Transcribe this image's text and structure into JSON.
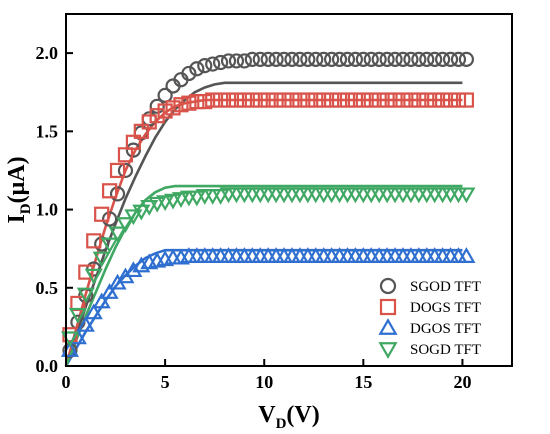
{
  "chart_data": {
    "type": "scatter",
    "title": "",
    "xlabel": {
      "main": "V",
      "sub": "D",
      "unit": "(V)"
    },
    "ylabel": {
      "main": "I",
      "sub": "D",
      "unit": "(μA)"
    },
    "xlim": [
      0,
      22.5
    ],
    "ylim": [
      0,
      2.25
    ],
    "xticks": [
      0,
      5,
      10,
      15,
      20
    ],
    "xtick_labels": [
      "0",
      "5",
      "10",
      "15",
      "20"
    ],
    "yticks": [
      0,
      0.5,
      1.0,
      1.5,
      2.0
    ],
    "ytick_labels": [
      "0.0",
      "0.5",
      "1.0",
      "1.5",
      "2.0"
    ],
    "grid": false,
    "legend_position": "bottom-right",
    "marker_x": [
      0.2,
      0.6,
      1.0,
      1.4,
      1.8,
      2.2,
      2.6,
      3.0,
      3.4,
      3.8,
      4.2,
      4.6,
      5.0,
      5.4,
      5.8,
      6.2,
      6.6,
      7.0,
      7.4,
      7.8,
      8.2,
      8.6,
      9.0,
      9.4,
      9.8,
      10.2,
      10.6,
      11.0,
      11.4,
      11.8,
      12.2,
      12.6,
      13.0,
      13.4,
      13.8,
      14.2,
      14.6,
      15.0,
      15.4,
      15.8,
      16.2,
      16.6,
      17.0,
      17.4,
      17.8,
      18.2,
      18.6,
      19.0,
      19.4,
      19.8,
      20.2
    ],
    "fit_x": [
      0,
      0.5,
      1,
      1.5,
      2,
      2.5,
      3,
      3.5,
      4,
      4.5,
      5,
      5.5,
      6,
      6.5,
      7,
      7.5,
      8,
      8.5,
      9,
      9.5,
      10,
      11,
      12,
      13,
      14,
      15,
      16,
      17,
      18,
      19,
      20
    ],
    "series": [
      {
        "name": "SGOD TFT",
        "marker": "circle",
        "color": "#555555",
        "values": [
          0.1,
          0.28,
          0.45,
          0.62,
          0.78,
          0.94,
          1.1,
          1.25,
          1.38,
          1.49,
          1.58,
          1.66,
          1.73,
          1.79,
          1.83,
          1.87,
          1.9,
          1.92,
          1.93,
          1.94,
          1.95,
          1.95,
          1.95,
          1.96,
          1.96,
          1.96,
          1.96,
          1.96,
          1.96,
          1.96,
          1.96,
          1.96,
          1.96,
          1.96,
          1.96,
          1.96,
          1.96,
          1.96,
          1.96,
          1.96,
          1.96,
          1.96,
          1.96,
          1.96,
          1.96,
          1.96,
          1.96,
          1.96,
          1.96,
          1.96,
          1.96
        ],
        "fit": [
          0,
          0.19,
          0.38,
          0.56,
          0.74,
          0.91,
          1.07,
          1.21,
          1.34,
          1.46,
          1.56,
          1.64,
          1.7,
          1.75,
          1.78,
          1.8,
          1.81,
          1.81,
          1.81,
          1.81,
          1.81,
          1.81,
          1.81,
          1.81,
          1.81,
          1.81,
          1.81,
          1.81,
          1.81,
          1.81,
          1.81
        ]
      },
      {
        "name": "DOGS TFT",
        "marker": "square",
        "color": "#d9534a",
        "values": [
          0.2,
          0.4,
          0.6,
          0.8,
          0.97,
          1.12,
          1.25,
          1.35,
          1.43,
          1.5,
          1.56,
          1.6,
          1.63,
          1.65,
          1.67,
          1.68,
          1.69,
          1.69,
          1.7,
          1.7,
          1.7,
          1.7,
          1.7,
          1.7,
          1.7,
          1.7,
          1.7,
          1.7,
          1.7,
          1.7,
          1.7,
          1.7,
          1.7,
          1.7,
          1.7,
          1.7,
          1.7,
          1.7,
          1.7,
          1.7,
          1.7,
          1.7,
          1.7,
          1.7,
          1.7,
          1.7,
          1.7,
          1.7,
          1.7,
          1.7,
          1.7
        ],
        "fit": [
          0,
          0.23,
          0.46,
          0.68,
          0.89,
          1.08,
          1.25,
          1.38,
          1.48,
          1.56,
          1.62,
          1.66,
          1.68,
          1.69,
          1.7,
          1.7,
          1.7,
          1.7,
          1.7,
          1.7,
          1.7,
          1.7,
          1.7,
          1.7,
          1.7,
          1.7,
          1.7,
          1.7,
          1.7,
          1.7,
          1.7
        ]
      },
      {
        "name": "DGOS TFT",
        "marker": "triangle-up",
        "color": "#2f6fd0",
        "values": [
          0.1,
          0.18,
          0.26,
          0.34,
          0.41,
          0.47,
          0.53,
          0.57,
          0.61,
          0.64,
          0.66,
          0.67,
          0.68,
          0.69,
          0.69,
          0.7,
          0.7,
          0.7,
          0.7,
          0.7,
          0.7,
          0.7,
          0.7,
          0.7,
          0.7,
          0.7,
          0.7,
          0.7,
          0.7,
          0.7,
          0.7,
          0.7,
          0.7,
          0.7,
          0.7,
          0.7,
          0.7,
          0.7,
          0.7,
          0.7,
          0.7,
          0.7,
          0.7,
          0.7,
          0.7,
          0.7,
          0.7,
          0.7,
          0.7,
          0.7,
          0.7
        ],
        "fit": [
          0,
          0.11,
          0.22,
          0.32,
          0.42,
          0.51,
          0.58,
          0.64,
          0.69,
          0.72,
          0.74,
          0.74,
          0.74,
          0.74,
          0.74,
          0.74,
          0.74,
          0.74,
          0.74,
          0.74,
          0.74,
          0.74,
          0.74,
          0.74,
          0.74,
          0.74,
          0.74,
          0.74,
          0.74,
          0.74,
          0.74
        ]
      },
      {
        "name": "SOGD TFT",
        "marker": "triangle-down",
        "color": "#3fa862",
        "values": [
          0.18,
          0.33,
          0.46,
          0.58,
          0.69,
          0.78,
          0.85,
          0.91,
          0.96,
          0.99,
          1.02,
          1.04,
          1.05,
          1.06,
          1.07,
          1.08,
          1.08,
          1.09,
          1.09,
          1.09,
          1.1,
          1.1,
          1.1,
          1.1,
          1.1,
          1.1,
          1.1,
          1.1,
          1.1,
          1.1,
          1.1,
          1.1,
          1.1,
          1.1,
          1.1,
          1.1,
          1.1,
          1.1,
          1.1,
          1.1,
          1.1,
          1.1,
          1.1,
          1.1,
          1.1,
          1.1,
          1.1,
          1.1,
          1.1,
          1.1,
          1.1
        ],
        "fit": [
          0,
          0.16,
          0.32,
          0.47,
          0.62,
          0.76,
          0.88,
          0.98,
          1.06,
          1.11,
          1.14,
          1.15,
          1.15,
          1.15,
          1.15,
          1.15,
          1.15,
          1.15,
          1.15,
          1.15,
          1.15,
          1.15,
          1.15,
          1.15,
          1.15,
          1.15,
          1.15,
          1.15,
          1.15,
          1.15,
          1.15
        ]
      }
    ]
  }
}
